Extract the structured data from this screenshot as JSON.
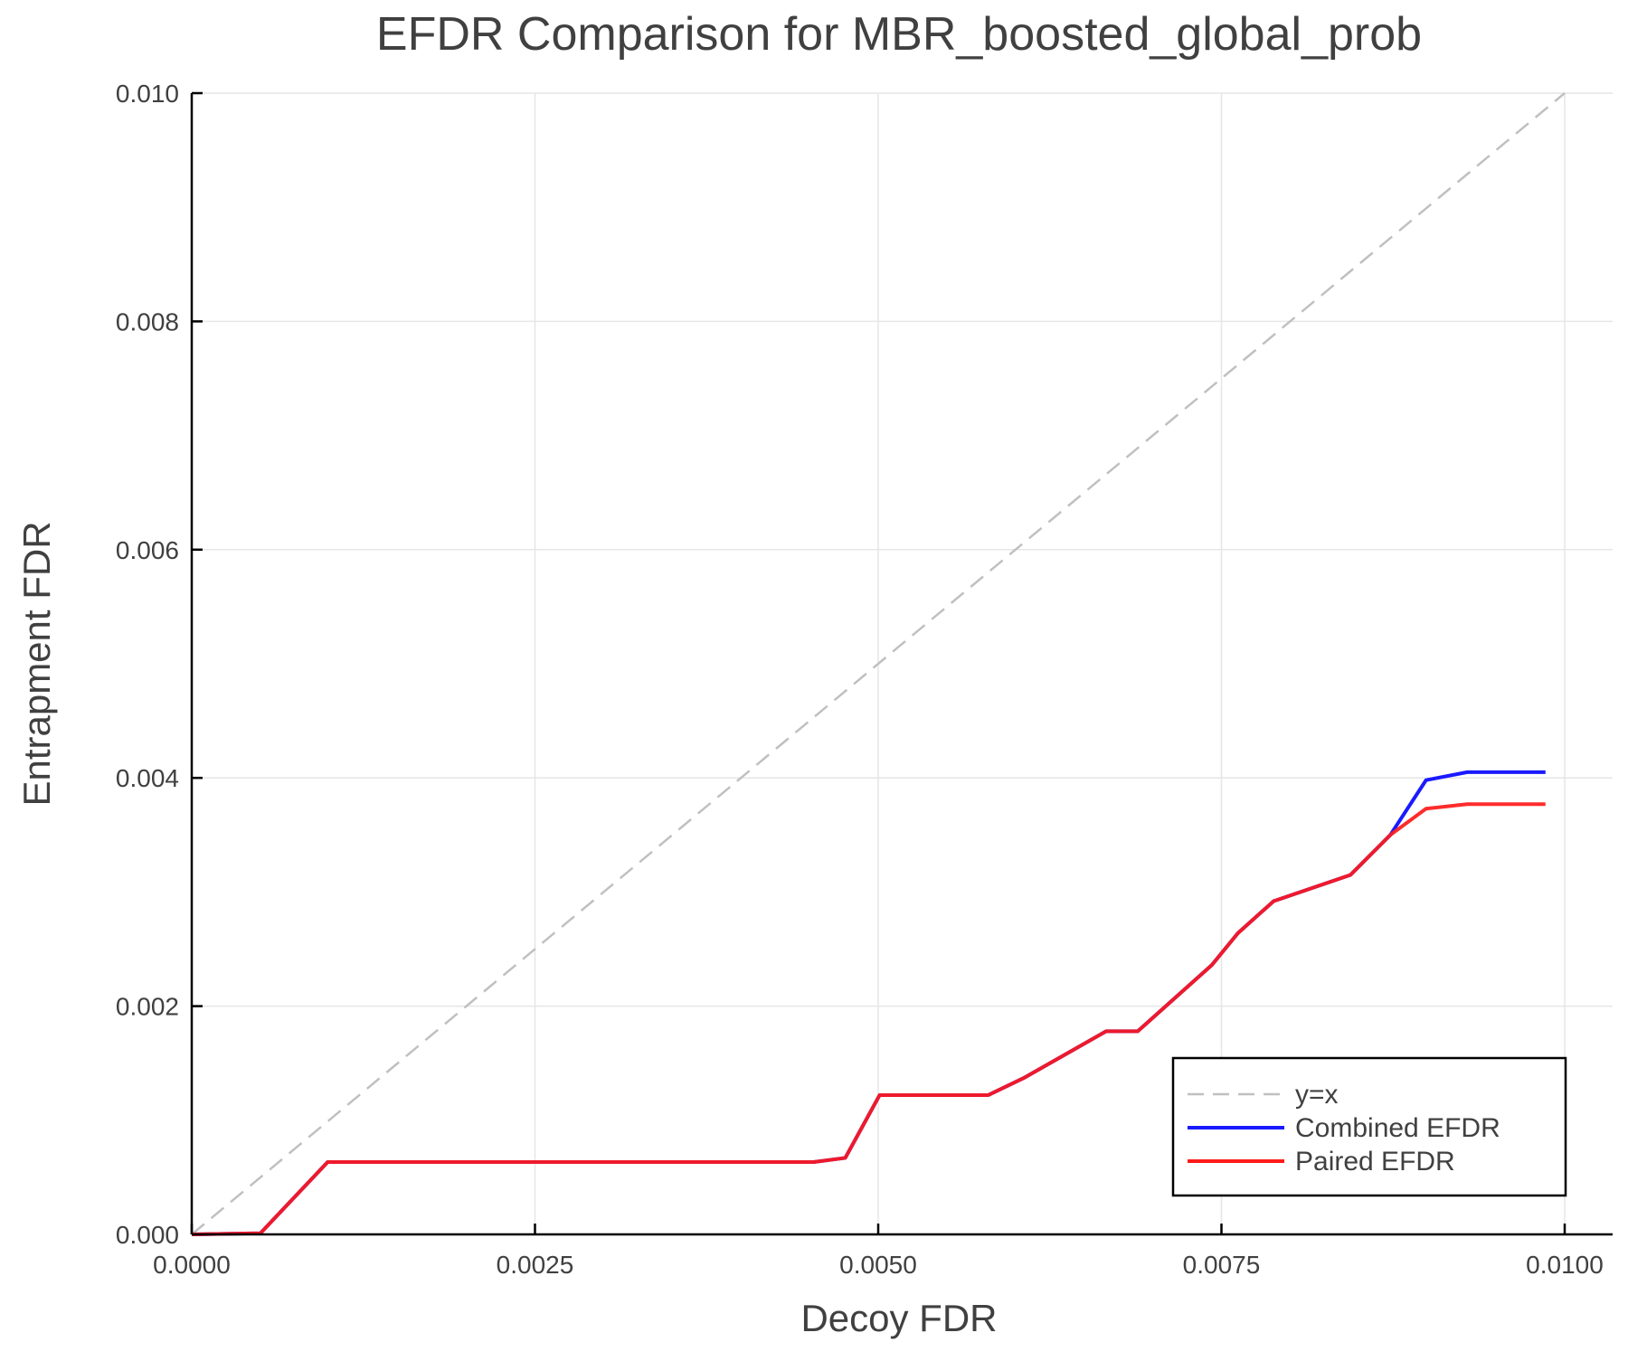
{
  "chart_data": {
    "type": "line",
    "title": "EFDR Comparison for MBR_boosted_global_prob",
    "xlabel": "Decoy FDR",
    "ylabel": "Entrapment FDR",
    "xlim": [
      0,
      0.0104
    ],
    "ylim": [
      0,
      0.01
    ],
    "xticks": [
      0,
      0.0025,
      0.005,
      0.0075,
      0.01
    ],
    "xtick_labels": [
      "0.0000",
      "0.0025",
      "0.0050",
      "0.0075",
      "0.0100"
    ],
    "yticks": [
      0,
      0.002,
      0.004,
      0.006,
      0.008,
      0.01
    ],
    "ytick_labels": [
      "0.000",
      "0.002",
      "0.004",
      "0.006",
      "0.008",
      "0.010"
    ],
    "grid": true,
    "legend_position": "bottom-right",
    "series": [
      {
        "name": "y=x",
        "color": "#c0c0c0",
        "dashed": true,
        "x": [
          0,
          0.01
        ],
        "y": [
          0,
          0.01
        ]
      },
      {
        "name": "Combined EFDR",
        "color": "#1a1aff",
        "dashed": false,
        "x": [
          0,
          0.0005,
          0.00099,
          0.00453,
          0.00476,
          0.00501,
          0.0058,
          0.00606,
          0.00666,
          0.00689,
          0.00743,
          0.00762,
          0.00788,
          0.00844,
          0.00873,
          0.00899,
          0.00929,
          0.00986
        ],
        "y": [
          0,
          1e-05,
          0.000634,
          0.000634,
          0.00067,
          0.00122,
          0.00122,
          0.00137,
          0.00178,
          0.00178,
          0.00236,
          0.00264,
          0.00292,
          0.00315,
          0.0035,
          0.00398,
          0.00405,
          0.00405
        ]
      },
      {
        "name": "Paired EFDR",
        "color": "#ff1a1a",
        "dashed": false,
        "x": [
          0,
          0.0005,
          0.00099,
          0.00453,
          0.00476,
          0.00501,
          0.0058,
          0.00606,
          0.00666,
          0.00689,
          0.00743,
          0.00762,
          0.00788,
          0.00844,
          0.00873,
          0.00899,
          0.00929,
          0.00986
        ],
        "y": [
          0,
          1e-05,
          0.000634,
          0.000634,
          0.00067,
          0.00122,
          0.00122,
          0.00137,
          0.00178,
          0.00178,
          0.00236,
          0.00264,
          0.00292,
          0.00315,
          0.0035,
          0.00373,
          0.00377,
          0.00377
        ]
      }
    ]
  }
}
